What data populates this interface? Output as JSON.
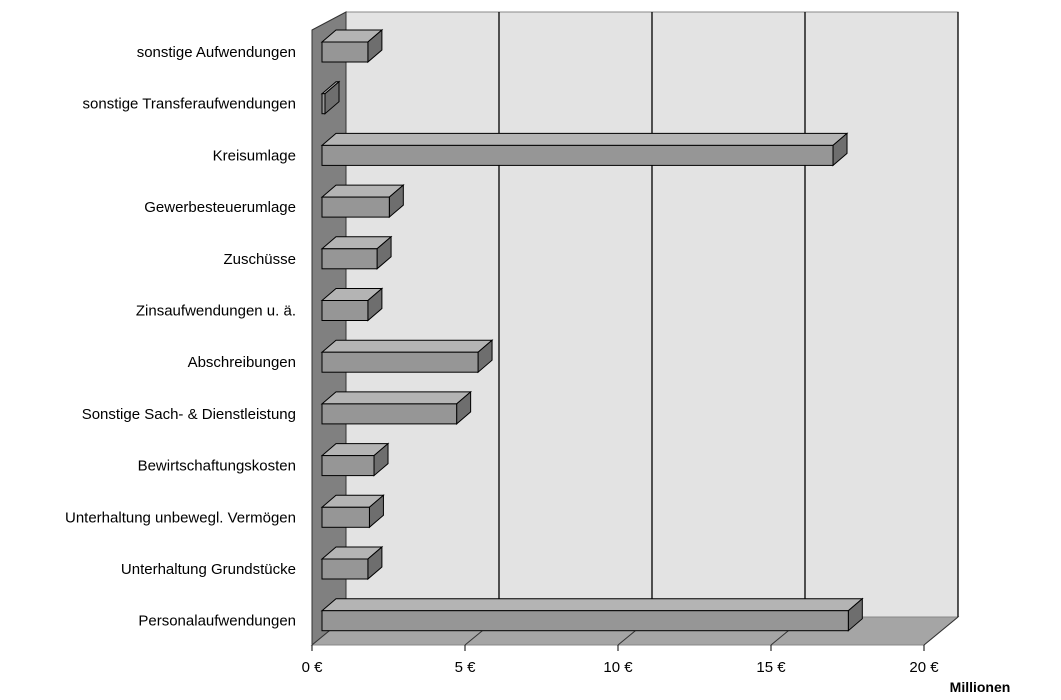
{
  "chart_data": {
    "type": "bar",
    "orientation": "horizontal",
    "categories": [
      "sonstige Aufwendungen",
      "sonstige Transferaufwendungen",
      "Kreisumlage",
      "Gewerbesteuerumlage",
      "Zuschüsse",
      "Zinsaufwendungen u. ä.",
      "Abschreibungen",
      "Sonstige Sach- & Dienstleistung",
      "Bewirtschaftungskosten",
      "Unterhaltung unbewegl. Vermögen",
      "Unterhaltung Grundstücke",
      "Personalaufwendungen"
    ],
    "values": [
      1.5,
      0.05,
      16.7,
      2.2,
      1.8,
      1.5,
      5.1,
      4.4,
      1.7,
      1.55,
      1.5,
      17.2
    ],
    "xticks": [
      "0 €",
      "5 €",
      "10 €",
      "15 €",
      "20 €"
    ],
    "xtick_values": [
      0,
      5,
      10,
      15,
      20
    ],
    "xlim": [
      0,
      20
    ],
    "xunit_label": "Millionen",
    "grid": true,
    "three_d": true,
    "colors": {
      "bar_front": "#969696",
      "bar_top": "#b4b4b4",
      "bar_side": "#6e6e6e",
      "wall": "#e3e3e3",
      "left_wall": "#808080",
      "floor": "#a5a5a5",
      "grid": "#000000"
    }
  }
}
